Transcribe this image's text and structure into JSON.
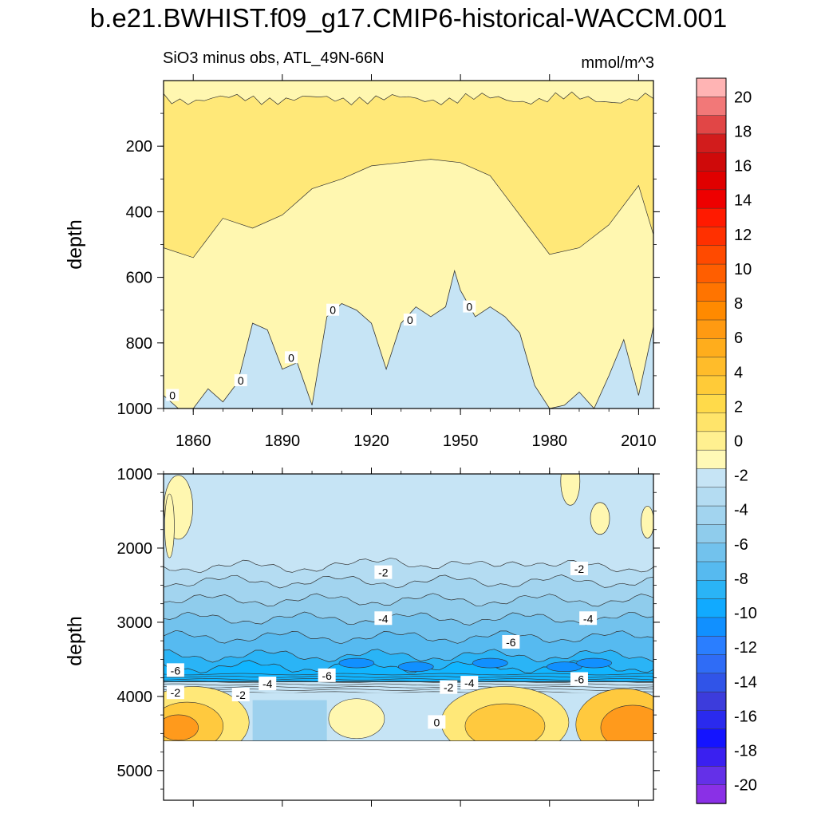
{
  "figure": {
    "title": "b.e21.BWHIST.f09_g17.CMIP6-historical-WACCM.001",
    "subtitle": "SiO3 minus obs, ATL_49N-66N",
    "units": "mmol/m^3"
  },
  "colors": {
    "pos_small": "#fff7b0",
    "pos_2": "#ffe878",
    "neg_small": "#c6e4f5",
    "neg_mid": "#9dd1ee",
    "neg_dark": "#52b8ee",
    "neg_deep": "#11b5ff",
    "warm_4": "#ffc93e",
    "warm_8": "#ff9a1c",
    "missing": "#ffffff"
  },
  "chart_data": [
    {
      "type": "heatmap",
      "panel": "top",
      "xlabel": "",
      "ylabel": "depth",
      "xlim": [
        1850,
        2015
      ],
      "ylim": [
        1000,
        0
      ],
      "xticks": [
        1860,
        1890,
        1920,
        1950,
        1980,
        2010
      ],
      "yticks": [
        200,
        400,
        600,
        800,
        1000
      ],
      "contour_labels": [
        "0",
        "0",
        "0",
        "0",
        "0",
        "0"
      ],
      "description_values": {
        "zero_contour_depth": [
          {
            "x": 1850,
            "y": 960
          },
          {
            "x": 1855,
            "y": 1000
          },
          {
            "x": 1860,
            "y": 1000
          },
          {
            "x": 1865,
            "y": 940
          },
          {
            "x": 1870,
            "y": 980
          },
          {
            "x": 1875,
            "y": 920
          },
          {
            "x": 1880,
            "y": 740
          },
          {
            "x": 1885,
            "y": 760
          },
          {
            "x": 1890,
            "y": 880
          },
          {
            "x": 1895,
            "y": 860
          },
          {
            "x": 1900,
            "y": 990
          },
          {
            "x": 1905,
            "y": 720
          },
          {
            "x": 1910,
            "y": 680
          },
          {
            "x": 1915,
            "y": 700
          },
          {
            "x": 1920,
            "y": 740
          },
          {
            "x": 1925,
            "y": 880
          },
          {
            "x": 1930,
            "y": 740
          },
          {
            "x": 1935,
            "y": 690
          },
          {
            "x": 1940,
            "y": 720
          },
          {
            "x": 1945,
            "y": 690
          },
          {
            "x": 1948,
            "y": 580
          },
          {
            "x": 1950,
            "y": 640
          },
          {
            "x": 1955,
            "y": 720
          },
          {
            "x": 1960,
            "y": 690
          },
          {
            "x": 1965,
            "y": 720
          },
          {
            "x": 1970,
            "y": 770
          },
          {
            "x": 1975,
            "y": 930
          },
          {
            "x": 1980,
            "y": 1000
          },
          {
            "x": 1985,
            "y": 990
          },
          {
            "x": 1990,
            "y": 950
          },
          {
            "x": 1995,
            "y": 1000
          },
          {
            "x": 2000,
            "y": 900
          },
          {
            "x": 2005,
            "y": 790
          },
          {
            "x": 2010,
            "y": 960
          },
          {
            "x": 2015,
            "y": 750
          }
        ],
        "upper_band_2_contour_depth": [
          {
            "x": 1850,
            "y": 510
          },
          {
            "x": 1860,
            "y": 540
          },
          {
            "x": 1870,
            "y": 420
          },
          {
            "x": 1880,
            "y": 450
          },
          {
            "x": 1890,
            "y": 410
          },
          {
            "x": 1900,
            "y": 330
          },
          {
            "x": 1910,
            "y": 300
          },
          {
            "x": 1920,
            "y": 260
          },
          {
            "x": 1930,
            "y": 250
          },
          {
            "x": 1940,
            "y": 240
          },
          {
            "x": 1950,
            "y": 250
          },
          {
            "x": 1960,
            "y": 290
          },
          {
            "x": 1970,
            "y": 410
          },
          {
            "x": 1980,
            "y": 530
          },
          {
            "x": 1990,
            "y": 510
          },
          {
            "x": 2000,
            "y": 440
          },
          {
            "x": 2010,
            "y": 320
          },
          {
            "x": 2015,
            "y": 470
          }
        ]
      }
    },
    {
      "type": "heatmap",
      "panel": "bottom",
      "xlabel": "",
      "ylabel": "depth",
      "xlim": [
        1850,
        2015
      ],
      "ylim": [
        5400,
        1000
      ],
      "xticks": [
        1860,
        1890,
        1920,
        1950,
        1980,
        2010
      ],
      "yticks": [
        1000,
        2000,
        3000,
        4000,
        5000
      ],
      "data_bottom_depth": 4600,
      "contour_labels": [
        "-2",
        "-2",
        "-4",
        "-4",
        "-6",
        "-6",
        "-4",
        "-6",
        "-2",
        "-4",
        "-6",
        "-2",
        "-4",
        "0"
      ],
      "description_values": {
        "band_depths_minus": [
          {
            "level": -2,
            "depth": 2300
          },
          {
            "level": -3,
            "depth": 2600
          },
          {
            "level": -4,
            "depth": 2900
          },
          {
            "level": -5,
            "depth": 3200
          },
          {
            "level": -6,
            "depth": 3500
          },
          {
            "level": -7,
            "depth": 3750
          }
        ]
      }
    }
  ],
  "colorbar": {
    "levels": [
      20,
      18,
      16,
      14,
      12,
      10,
      8,
      6,
      4,
      2,
      0,
      -2,
      -4,
      -6,
      -8,
      -10,
      -12,
      -14,
      -16,
      -18,
      -20
    ],
    "labels": [
      "20",
      "18",
      "16",
      "14",
      "12",
      "10",
      "8",
      "6",
      "4",
      "2",
      "0",
      "-2",
      "-4",
      "-6",
      "-8",
      "-10",
      "-12",
      "-14",
      "-16",
      "-18",
      "-20"
    ],
    "swatches": [
      "#ffb4b4",
      "#f27878",
      "#e14646",
      "#d21c1c",
      "#cf0a0a",
      "#e00000",
      "#ee0000",
      "#ff1a00",
      "#ff3000",
      "#ff4a00",
      "#ff5e00",
      "#ff7400",
      "#ff8a00",
      "#ff9a12",
      "#ffad1c",
      "#ffbc2a",
      "#ffcb38",
      "#ffda4a",
      "#ffe46a",
      "#fff090",
      "#fff9b6",
      "#c6e4f5",
      "#b4dcf2",
      "#a2d4ef",
      "#8fccec",
      "#72c2ed",
      "#56baf0",
      "#2ab4f6",
      "#11aaff",
      "#1190ff",
      "#2a7eff",
      "#2f6cf6",
      "#3054e8",
      "#3c3cdc",
      "#2a2aee",
      "#1414ff",
      "#3a20f0",
      "#6430e8",
      "#8a30e6"
    ]
  }
}
